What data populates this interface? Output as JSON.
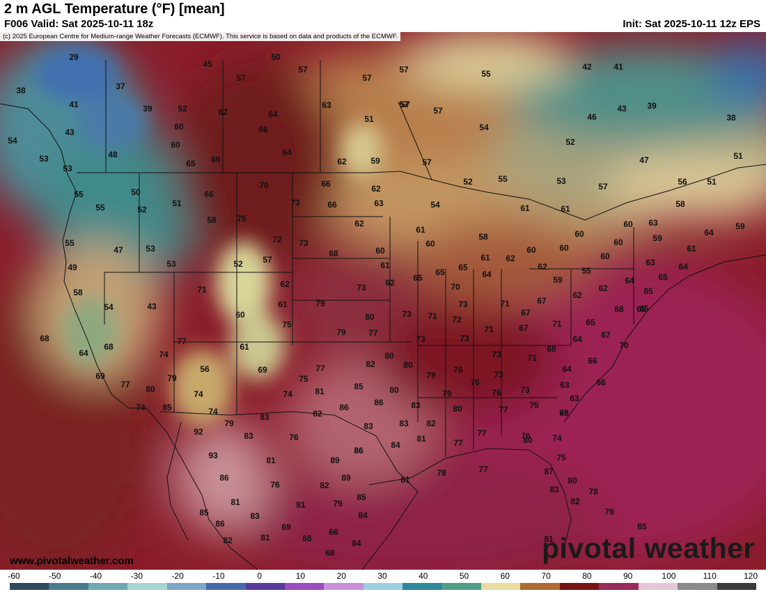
{
  "header": {
    "title": "2 m AGL Temperature (°F) [mean]",
    "valid": "F006 Valid: Sat 2025-10-11 18z",
    "init": "Init: Sat 2025-10-11 12z EPS"
  },
  "copyright": "(c) 2025 European Centre for Medium-range Weather Forecasts (ECMWF). This service is based on data and products of the ECMWF.",
  "footer": {
    "website": "www.pivotalweather.com",
    "logo": "pivotal weather"
  },
  "colorbar": {
    "ticks": [
      "-60",
      "-50",
      "-40",
      "-30",
      "-20",
      "-10",
      "0",
      "10",
      "20",
      "30",
      "40",
      "50",
      "60",
      "70",
      "80",
      "90",
      "100",
      "110",
      "120"
    ],
    "colors": [
      "#2f4a5c",
      "#4a7a8c",
      "#6fa8b0",
      "#a6d6d0",
      "#7fa6c8",
      "#4668a8",
      "#5a3a9c",
      "#9c4cc0",
      "#c890d8",
      "#9fd0e0",
      "#2d8a9c",
      "#4f9e86",
      "#e8dca0",
      "#b06a34",
      "#761414",
      "#9a2a5a",
      "#e6c6d8",
      "#8a8a8a",
      "#3c3c3c"
    ]
  },
  "map": {
    "labels": [
      {
        "id": "l001",
        "text": "29"
      },
      {
        "id": "l002",
        "text": "45"
      },
      {
        "id": "l003",
        "text": "50"
      },
      {
        "id": "l004",
        "text": "57"
      },
      {
        "id": "l005",
        "text": "57"
      },
      {
        "id": "l006",
        "text": "57"
      },
      {
        "id": "l007",
        "text": "55"
      },
      {
        "id": "l008",
        "text": "42"
      },
      {
        "id": "l009",
        "text": "41"
      },
      {
        "id": "l010",
        "text": "38"
      },
      {
        "id": "l011",
        "text": "37"
      },
      {
        "id": "l012",
        "text": "57"
      },
      {
        "id": "l013",
        "text": "57"
      },
      {
        "id": "l014",
        "text": "57"
      },
      {
        "id": "l015",
        "text": "41"
      },
      {
        "id": "l016",
        "text": "39"
      },
      {
        "id": "l017",
        "text": "52"
      },
      {
        "id": "l018",
        "text": "62"
      },
      {
        "id": "l019",
        "text": "64"
      },
      {
        "id": "l020",
        "text": "63"
      },
      {
        "id": "l021",
        "text": "57"
      },
      {
        "id": "l022",
        "text": "43"
      },
      {
        "id": "l023",
        "text": "39"
      },
      {
        "id": "l024",
        "text": "51"
      },
      {
        "id": "l025",
        "text": "46"
      },
      {
        "id": "l026",
        "text": "38"
      },
      {
        "id": "l027",
        "text": "60"
      },
      {
        "id": "l028",
        "text": "66"
      },
      {
        "id": "l029",
        "text": "43"
      },
      {
        "id": "l030",
        "text": "54"
      },
      {
        "id": "l031",
        "text": "54"
      },
      {
        "id": "l032",
        "text": "60"
      },
      {
        "id": "l033",
        "text": "52"
      },
      {
        "id": "l034",
        "text": "48"
      },
      {
        "id": "l035",
        "text": "64"
      },
      {
        "id": "l036",
        "text": "53"
      },
      {
        "id": "l037",
        "text": "65"
      },
      {
        "id": "l038",
        "text": "66"
      },
      {
        "id": "l039",
        "text": "62"
      },
      {
        "id": "l040",
        "text": "59"
      },
      {
        "id": "l041",
        "text": "57"
      },
      {
        "id": "l042",
        "text": "47"
      },
      {
        "id": "l043",
        "text": "51"
      },
      {
        "id": "l044",
        "text": "53"
      },
      {
        "id": "l045",
        "text": "52"
      },
      {
        "id": "l046",
        "text": "55"
      },
      {
        "id": "l047",
        "text": "53"
      },
      {
        "id": "l048",
        "text": "57"
      },
      {
        "id": "l049",
        "text": "56"
      },
      {
        "id": "l050",
        "text": "51"
      },
      {
        "id": "l051",
        "text": "50"
      },
      {
        "id": "l052",
        "text": "66"
      },
      {
        "id": "l053",
        "text": "70"
      },
      {
        "id": "l054",
        "text": "66"
      },
      {
        "id": "l055",
        "text": "62"
      },
      {
        "id": "l056",
        "text": "55"
      },
      {
        "id": "l057",
        "text": "52"
      },
      {
        "id": "l058",
        "text": "51"
      },
      {
        "id": "l059",
        "text": "73"
      },
      {
        "id": "l060",
        "text": "66"
      },
      {
        "id": "l061",
        "text": "63"
      },
      {
        "id": "l062",
        "text": "54"
      },
      {
        "id": "l063",
        "text": "61"
      },
      {
        "id": "l064",
        "text": "61"
      },
      {
        "id": "l065",
        "text": "58"
      },
      {
        "id": "l066",
        "text": "55"
      },
      {
        "id": "l067",
        "text": "58"
      },
      {
        "id": "l068",
        "text": "75"
      },
      {
        "id": "l069",
        "text": "62"
      },
      {
        "id": "l070",
        "text": "61"
      },
      {
        "id": "l071",
        "text": "60"
      },
      {
        "id": "l072",
        "text": "63"
      },
      {
        "id": "l073",
        "text": "64"
      },
      {
        "id": "l074",
        "text": "59"
      },
      {
        "id": "l075",
        "text": "47"
      },
      {
        "id": "l076",
        "text": "53"
      },
      {
        "id": "l077",
        "text": "55"
      },
      {
        "id": "l078",
        "text": "72"
      },
      {
        "id": "l079",
        "text": "73"
      },
      {
        "id": "l080",
        "text": "68"
      },
      {
        "id": "l081",
        "text": "60"
      },
      {
        "id": "l082",
        "text": "60"
      },
      {
        "id": "l083",
        "text": "58"
      },
      {
        "id": "l084",
        "text": "60"
      },
      {
        "id": "l085",
        "text": "60"
      },
      {
        "id": "l086",
        "text": "59"
      },
      {
        "id": "l087",
        "text": "61"
      },
      {
        "id": "l088",
        "text": "60"
      },
      {
        "id": "l089",
        "text": "60"
      },
      {
        "id": "l090",
        "text": "60"
      },
      {
        "id": "l091",
        "text": "49"
      },
      {
        "id": "l092",
        "text": "53"
      },
      {
        "id": "l093",
        "text": "52"
      },
      {
        "id": "l094",
        "text": "57"
      },
      {
        "id": "l095",
        "text": "61"
      },
      {
        "id": "l096",
        "text": "61"
      },
      {
        "id": "l097",
        "text": "62"
      },
      {
        "id": "l098",
        "text": "62"
      },
      {
        "id": "l099",
        "text": "63"
      },
      {
        "id": "l100",
        "text": "64"
      },
      {
        "id": "l101",
        "text": "58"
      },
      {
        "id": "l102",
        "text": "71"
      },
      {
        "id": "l103",
        "text": "62"
      },
      {
        "id": "l104",
        "text": "73"
      },
      {
        "id": "l105",
        "text": "62"
      },
      {
        "id": "l106",
        "text": "65"
      },
      {
        "id": "l107",
        "text": "65"
      },
      {
        "id": "l108",
        "text": "64"
      },
      {
        "id": "l109",
        "text": "65"
      },
      {
        "id": "l110",
        "text": "59"
      },
      {
        "id": "l111",
        "text": "55"
      },
      {
        "id": "l112",
        "text": "62"
      },
      {
        "id": "l113",
        "text": "64"
      },
      {
        "id": "l114",
        "text": "65"
      },
      {
        "id": "l115",
        "text": "65"
      },
      {
        "id": "l116",
        "text": "54"
      },
      {
        "id": "l117",
        "text": "43"
      },
      {
        "id": "l118",
        "text": "61"
      },
      {
        "id": "l119",
        "text": "79"
      },
      {
        "id": "l120",
        "text": "70"
      },
      {
        "id": "l121",
        "text": "73"
      },
      {
        "id": "l122",
        "text": "71"
      },
      {
        "id": "l123",
        "text": "67"
      },
      {
        "id": "l124",
        "text": "62"
      },
      {
        "id": "l125",
        "text": "68"
      },
      {
        "id": "l126",
        "text": "65"
      },
      {
        "id": "l127",
        "text": "60"
      },
      {
        "id": "l128",
        "text": "80"
      },
      {
        "id": "l129",
        "text": "73"
      },
      {
        "id": "l130",
        "text": "71"
      },
      {
        "id": "l131",
        "text": "72"
      },
      {
        "id": "l132",
        "text": "67"
      },
      {
        "id": "l133",
        "text": "65"
      },
      {
        "id": "l134",
        "text": "68"
      },
      {
        "id": "l135",
        "text": "64"
      },
      {
        "id": "l136",
        "text": "75"
      },
      {
        "id": "l137",
        "text": "79"
      },
      {
        "id": "l138",
        "text": "77"
      },
      {
        "id": "l139",
        "text": "71"
      },
      {
        "id": "l140",
        "text": "67"
      },
      {
        "id": "l141",
        "text": "71"
      },
      {
        "id": "l142",
        "text": "67"
      },
      {
        "id": "l143",
        "text": "68"
      },
      {
        "id": "l144",
        "text": "77"
      },
      {
        "id": "l145",
        "text": "74"
      },
      {
        "id": "l146",
        "text": "61"
      },
      {
        "id": "l147",
        "text": "73"
      },
      {
        "id": "l148",
        "text": "73"
      },
      {
        "id": "l149",
        "text": "64"
      },
      {
        "id": "l150",
        "text": "70"
      },
      {
        "id": "l151",
        "text": "68"
      },
      {
        "id": "l152",
        "text": "56"
      },
      {
        "id": "l153",
        "text": "69"
      },
      {
        "id": "l154",
        "text": "77"
      },
      {
        "id": "l155",
        "text": "82"
      },
      {
        "id": "l156",
        "text": "80"
      },
      {
        "id": "l157",
        "text": "80"
      },
      {
        "id": "l158",
        "text": "73"
      },
      {
        "id": "l159",
        "text": "71"
      },
      {
        "id": "l160",
        "text": "68"
      },
      {
        "id": "l161",
        "text": "66"
      },
      {
        "id": "l162",
        "text": "69"
      },
      {
        "id": "l163",
        "text": "77"
      },
      {
        "id": "l164",
        "text": "80"
      },
      {
        "id": "l165",
        "text": "79"
      },
      {
        "id": "l166",
        "text": "75"
      },
      {
        "id": "l167",
        "text": "85"
      },
      {
        "id": "l168",
        "text": "80"
      },
      {
        "id": "l169",
        "text": "79"
      },
      {
        "id": "l170",
        "text": "76"
      },
      {
        "id": "l171",
        "text": "76"
      },
      {
        "id": "l172",
        "text": "73"
      },
      {
        "id": "l173",
        "text": "73"
      },
      {
        "id": "l174",
        "text": "64"
      },
      {
        "id": "l175",
        "text": "63"
      },
      {
        "id": "l176",
        "text": "66"
      },
      {
        "id": "l177",
        "text": "74"
      },
      {
        "id": "l178",
        "text": "74"
      },
      {
        "id": "l179",
        "text": "75"
      },
      {
        "id": "l180",
        "text": "81"
      },
      {
        "id": "l181",
        "text": "79"
      },
      {
        "id": "l182",
        "text": "76"
      },
      {
        "id": "l183",
        "text": "63"
      },
      {
        "id": "l184",
        "text": "74"
      },
      {
        "id": "l185",
        "text": "85"
      },
      {
        "id": "l186",
        "text": "74"
      },
      {
        "id": "l187",
        "text": "79"
      },
      {
        "id": "l188",
        "text": "83"
      },
      {
        "id": "l189",
        "text": "82"
      },
      {
        "id": "l190",
        "text": "86"
      },
      {
        "id": "l191",
        "text": "86"
      },
      {
        "id": "l192",
        "text": "83"
      },
      {
        "id": "l193",
        "text": "80"
      },
      {
        "id": "l194",
        "text": "77"
      },
      {
        "id": "l195",
        "text": "75"
      },
      {
        "id": "l196",
        "text": "68"
      },
      {
        "id": "l197",
        "text": "92"
      },
      {
        "id": "l198",
        "text": "83"
      },
      {
        "id": "l199",
        "text": "76"
      },
      {
        "id": "l200",
        "text": "83"
      },
      {
        "id": "l201",
        "text": "83"
      },
      {
        "id": "l202",
        "text": "82"
      },
      {
        "id": "l203",
        "text": "77"
      },
      {
        "id": "l204",
        "text": "81"
      },
      {
        "id": "l205",
        "text": "84"
      },
      {
        "id": "l206",
        "text": "77"
      },
      {
        "id": "l207",
        "text": "80"
      },
      {
        "id": "l208",
        "text": "76"
      },
      {
        "id": "l209",
        "text": "74"
      },
      {
        "id": "l210",
        "text": "93"
      },
      {
        "id": "l211",
        "text": "81"
      },
      {
        "id": "l212",
        "text": "86"
      },
      {
        "id": "l213",
        "text": "89"
      },
      {
        "id": "l214",
        "text": "86"
      },
      {
        "id": "l215",
        "text": "75"
      },
      {
        "id": "l216",
        "text": "86"
      },
      {
        "id": "l217",
        "text": "76"
      },
      {
        "id": "l218",
        "text": "82"
      },
      {
        "id": "l219",
        "text": "89"
      },
      {
        "id": "l220",
        "text": "81"
      },
      {
        "id": "l221",
        "text": "78"
      },
      {
        "id": "l222",
        "text": "77"
      },
      {
        "id": "l223",
        "text": "87"
      },
      {
        "id": "l224",
        "text": "80"
      },
      {
        "id": "l225",
        "text": "81"
      },
      {
        "id": "l226",
        "text": "81"
      },
      {
        "id": "l227",
        "text": "79"
      },
      {
        "id": "l228",
        "text": "85"
      },
      {
        "id": "l229",
        "text": "83"
      },
      {
        "id": "l230",
        "text": "82"
      },
      {
        "id": "l231",
        "text": "78"
      },
      {
        "id": "l232",
        "text": "85"
      },
      {
        "id": "l233",
        "text": "83"
      },
      {
        "id": "l234",
        "text": "84"
      },
      {
        "id": "l235",
        "text": "79"
      },
      {
        "id": "l236",
        "text": "86"
      },
      {
        "id": "l237",
        "text": "69"
      },
      {
        "id": "l238",
        "text": "85"
      },
      {
        "id": "l239",
        "text": "82"
      },
      {
        "id": "l240",
        "text": "81"
      },
      {
        "id": "l241",
        "text": "68"
      },
      {
        "id": "l242",
        "text": "66"
      },
      {
        "id": "l243",
        "text": "84"
      },
      {
        "id": "l244",
        "text": "81"
      },
      {
        "id": "l245",
        "text": "68"
      }
    ]
  }
}
